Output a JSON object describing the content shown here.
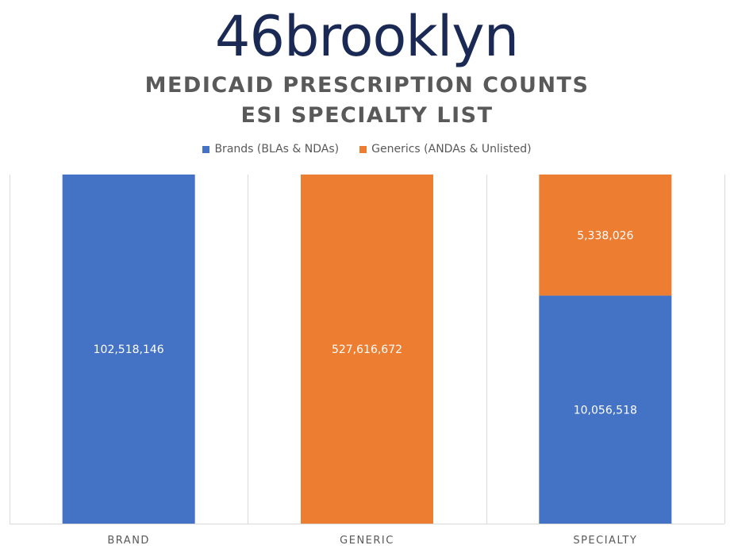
{
  "logo": {
    "text": "46brooklyn"
  },
  "chart_data": {
    "type": "bar",
    "stacked": true,
    "title": [
      "MEDICAID PRESCRIPTION COUNTS",
      "ESI SPECIALTY LIST"
    ],
    "categories": [
      "BRAND",
      "GENERIC",
      "SPECIALTY"
    ],
    "series": [
      {
        "name": "Brands (BLAs & NDAs)",
        "color": "#4472c4",
        "values": [
          102518146,
          0,
          10056518
        ],
        "labels": [
          "102,518,146",
          "",
          "10,056,518"
        ]
      },
      {
        "name": "Generics (ANDAs & Unlisted)",
        "color": "#ed7d31",
        "values": [
          0,
          527616672,
          5338026
        ],
        "labels": [
          "",
          "527,616,672",
          "5,338,026"
        ]
      }
    ],
    "normalized": true,
    "legend_position": "top",
    "grid": true
  }
}
